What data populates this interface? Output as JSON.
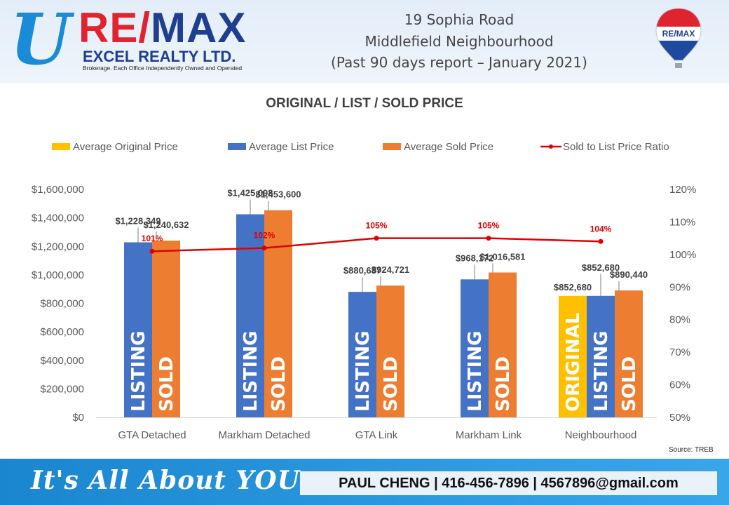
{
  "header": {
    "logo_mark": "U",
    "brand_red_1": "RE",
    "brand_slash": "/",
    "brand_blue": "MAX",
    "brokerage_name": "EXCEL REALTY LTD.",
    "brokerage_note": "Brokerage. Each Office Independently Owned and Operated",
    "title_lines": [
      "19 Sophia Road",
      "Middlefield Neighbourhood",
      "(Past 90 days report – January 2021)"
    ],
    "balloon_text": "RE/MAX"
  },
  "colors": {
    "original": "#ffc000",
    "list": "#4472c4",
    "sold": "#ed7d31",
    "ratio": "#e00000",
    "footer": "#1a86d0"
  },
  "chart_data": {
    "type": "bar",
    "title": "ORIGINAL / LIST / SOLD PRICE",
    "categories": [
      "GTA Detached",
      "Markham Detached",
      "GTA Link",
      "Markham Link",
      "Neighbourhood"
    ],
    "series": [
      {
        "name": "Average Original Price",
        "kind": "bar",
        "values": [
          null,
          null,
          null,
          null,
          852680
        ],
        "labels": [
          "",
          "",
          "",
          "",
          "$852,680"
        ],
        "bar_text": "ORIGINAL"
      },
      {
        "name": "Average List Price",
        "kind": "bar",
        "values": [
          1228349,
          1425098,
          880687,
          968172,
          852680
        ],
        "labels": [
          "$1,228,349",
          "$1,425,098",
          "$880,687",
          "$968,172",
          "$852,680"
        ],
        "bar_text": "LISTING"
      },
      {
        "name": "Average Sold Price",
        "kind": "bar",
        "values": [
          1240632,
          1453600,
          924721,
          1016581,
          890440
        ],
        "labels": [
          "$1,240,632",
          "$1,453,600",
          "$924,721",
          "$1,016,581",
          "$890,440"
        ],
        "bar_text": "SOLD"
      },
      {
        "name": "Sold to List Price Ratio",
        "kind": "line",
        "axis": "right",
        "values": [
          101,
          102,
          105,
          105,
          104
        ],
        "labels": [
          "101%",
          "102%",
          "105%",
          "105%",
          "104%"
        ]
      }
    ],
    "y_left": {
      "min": 0,
      "max": 1600000,
      "ticks": [
        "$0",
        "$200,000",
        "$400,000",
        "$600,000",
        "$800,000",
        "$1,000,000",
        "$1,200,000",
        "$1,400,000",
        "$1,600,000"
      ]
    },
    "y_right": {
      "min": 50,
      "max": 120,
      "ticks": [
        "50%",
        "60%",
        "70%",
        "80%",
        "90%",
        "100%",
        "110%",
        "120%"
      ]
    },
    "grid": false,
    "legend": "top"
  },
  "source": "Source: TREB",
  "footer": {
    "slogan": "It's All About YOU",
    "contact": "PAUL CHENG | 416-456-7896 | 4567896@gmail.com"
  }
}
